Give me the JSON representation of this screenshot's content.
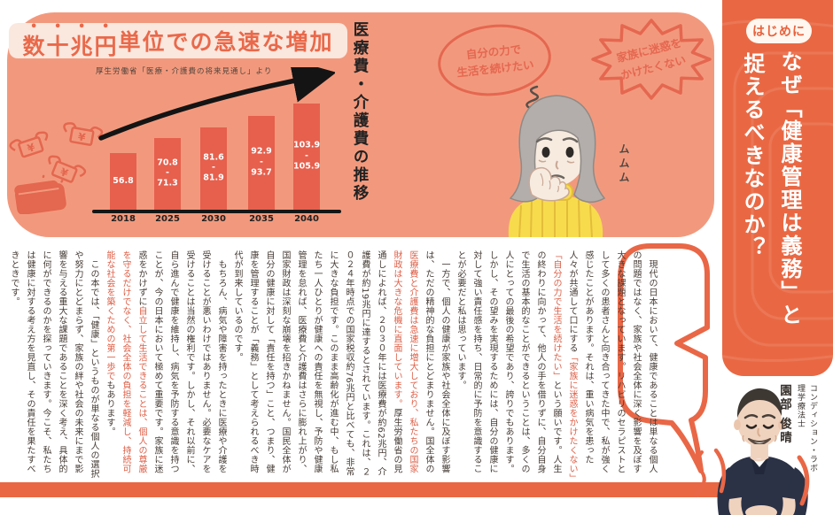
{
  "chart_section": {
    "headline_emphasis": "数十兆円",
    "headline_rest": "単位での急速な増加",
    "source_note": "厚生労働省「医療・介護費の将来見通し」より",
    "axis_title": "医療費・介護費の推移"
  },
  "chart_data": {
    "type": "bar",
    "title": "数十兆円単位での急速な増加",
    "source": "厚生労働省「医療・介護費の将来見通し」より",
    "ylabel": "医療費・介護費の推移（兆円）",
    "categories": [
      "2018",
      "2025",
      "2030",
      "2035",
      "2040"
    ],
    "values": [
      [
        56.8,
        56.8
      ],
      [
        70.8,
        71.3
      ],
      [
        81.6,
        81.9
      ],
      [
        92.9,
        93.7
      ],
      [
        103.9,
        105.9
      ]
    ],
    "bar_display": [
      [
        "56.8"
      ],
      [
        "70.8",
        "-",
        "71.3"
      ],
      [
        "81.6",
        "-",
        "81.9"
      ],
      [
        "92.9",
        "-",
        "93.7"
      ],
      [
        "103.9",
        "-",
        "105.9"
      ]
    ],
    "bar_color": "#E6604D",
    "annotations": [
      "rising-arrow",
      "flying-money-wallet"
    ],
    "legend": false,
    "grid": false
  },
  "bubbles": {
    "self_reliance": "自分の力で\n生活を続けたい",
    "family": "家族に迷惑を\nかけたくない",
    "mumble": "ムムム"
  },
  "intro": {
    "badge": "はじめに",
    "title_line1": "なぜ「健康管理は義務」と",
    "title_line2": "捉えるべきなのか？"
  },
  "author": {
    "organization": "コンディション・ラボ",
    "credential": "理学療法士",
    "name": "園部 俊晴"
  },
  "body": {
    "paragraphs": [
      {
        "segments": [
          {
            "text": "　現代の日本において、健康であることは単なる個人の問題ではなく、家族や社会全体に深く影響を及ぼす大きな課題となっています。リハビリのセラピストとして多くの患者さんと向き合ってきた中で、私が強く感じたことがあります。それは、重い病気を患った人々が共通して口にする",
            "highlight": false
          },
          {
            "text": "「家族に迷惑をかけたくない」「自分の力で生活を続けたい」",
            "highlight": true
          },
          {
            "text": "という願いです。人生の終わりに向かって、他人の手を借りずに、自分自身で生活の基本的なことができるということは、多くの人にとっての最後の希望であり、誇りでもあります。しかし、その望みを実現するためには、自分の健康に対して強い責任感を持ち、日常的に予防を意識することが必要だと私は思っています。",
            "highlight": false
          }
        ]
      },
      {
        "segments": [
          {
            "text": "　一方で、個人の健康が家族や社会全体に及ぼす影響は、ただの精神的な負担にとどまりません。国全体の",
            "highlight": false
          },
          {
            "text": "医療費と介護費は急速に増大しており、私たちの国家財政は大きな危機に直面しています。",
            "highlight": true
          },
          {
            "text": "厚生労働省の見通しによれば、２０３０年には医療費が約62兆円、介護費が約19兆円に達するとされています。これは、２０２４年時点での国家税収約76兆円と比べても、非常に大きな負担です。このまま高齢化が進む中、もし私たち一人ひとりが健康への責任を無視し、予防や健康管理を怠れば、医療費と介護費はさらに膨れ上がり、国家財政は深刻な崩壊を招きかねません。国民全体が自分の健康に対して「責任を持つ」こと、つまり、健康を管理することが「義務」として考えられるべき時代が到来しているのです。",
            "highlight": false
          }
        ]
      },
      {
        "segments": [
          {
            "text": "　もちろん、病気や障害を持ったときに医療や介護を受けることが悪いわけではありません。必要なケアを受けることは当然の権利です。しかし、それ以前に、自ら進んで健康を維持し、病気を予防する意識を持つことが、今の日本において極めて重要です。家族に迷惑をかけずに",
            "highlight": false
          },
          {
            "text": "自立して生活できることは、個人の尊厳を守るだけでなく、社会全体の負担を軽減し、持続可能な社会を築くための第一歩で",
            "highlight": true
          },
          {
            "text": "もあります。",
            "highlight": false
          }
        ]
      },
      {
        "segments": [
          {
            "text": "　この本では、「健康」というものが単なる個人の選択や努力にとどまらず、家族の絆や社会の未来にまで影響を与える重大な課題であることを深く考え、具体的に何ができるのかを探っていきます。今こそ、私たちは健康に対する考え方を見直し、その責任を果たすべきときです。",
            "highlight": false
          }
        ]
      }
    ]
  },
  "colors": {
    "top_panel": "#F2997D",
    "accent_orange": "#E96843",
    "bar_red": "#E6604D",
    "highlight_text": "#DE6048",
    "banner_bg": "#FAE7DE",
    "sweater_yellow": "#F8DB4D"
  },
  "icons": {
    "wallet": "flying-money-wallet-icon",
    "arrow": "rising-trend-arrow-icon",
    "oval_bubble": "thought-bubble-oval",
    "burst_bubble": "speech-bubble-burst",
    "balloon": "speech-balloon-outline"
  }
}
